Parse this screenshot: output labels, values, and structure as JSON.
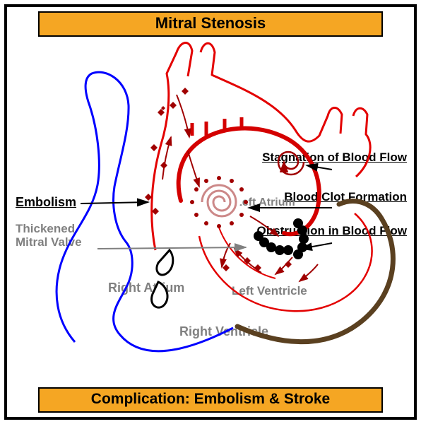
{
  "title": "Mitral Stenosis",
  "subtitle": "Complication: Embolism & Stroke",
  "annotations": {
    "embolism": "Embolism",
    "stagnation": "Stagnation of Blood Flow",
    "clot": "Blood Clot Formation",
    "obstruction": "Obstruction in Blood Flow",
    "thickenedValve": "Thickened Mitral Valve",
    "rightAtrium": "Right Atrium",
    "leftAtrium": "Left Atrium",
    "leftVentricle": "Left Ventricle",
    "rightVentricle": "Right Ventricle"
  },
  "colors": {
    "banner": "#f5a623",
    "black": "#000000",
    "red": "#e30000",
    "redThick": "#d40000",
    "darkRed": "#a00000",
    "blue": "#0000ff",
    "brown": "#5a4020",
    "grey": "#808080",
    "spiral": "#c88"
  },
  "strokeWidths": {
    "thin": 2,
    "med": 3,
    "thick": 5,
    "veryThick": 7
  }
}
